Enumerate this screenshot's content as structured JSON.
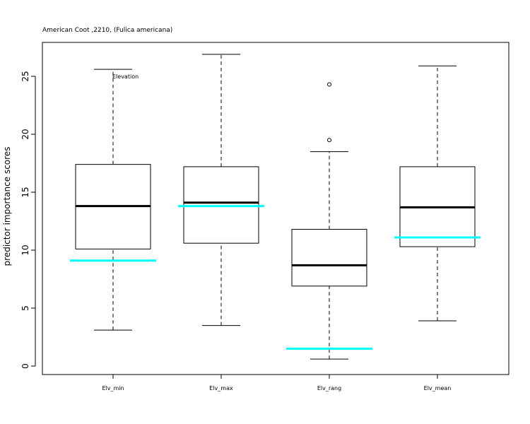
{
  "chart_data": {
    "type": "boxplot",
    "title": "American Coot ,2210, (Fulica americana)",
    "ylabel": "predictor importance scores",
    "xlabel": "",
    "ylim": [
      -0.6,
      28.1
    ],
    "yticks": [
      0,
      5,
      10,
      15,
      20,
      25
    ],
    "categories": [
      "Elv_min",
      "Elv_max",
      "Elv_rang",
      "Elv_mean"
    ],
    "boxes": [
      {
        "whisker_low": 3.1,
        "q1": 10.1,
        "median": 13.8,
        "q3": 17.4,
        "whisker_high": 25.6,
        "outliers": [],
        "reference": 9.1
      },
      {
        "whisker_low": 3.5,
        "q1": 10.6,
        "median": 14.1,
        "q3": 17.2,
        "whisker_high": 26.9,
        "outliers": [],
        "reference": 13.8
      },
      {
        "whisker_low": 0.6,
        "q1": 6.9,
        "median": 8.7,
        "q3": 11.8,
        "whisker_high": 18.5,
        "outliers": [
          19.5,
          24.3
        ],
        "reference": 1.5
      },
      {
        "whisker_low": 3.9,
        "q1": 10.3,
        "median": 13.7,
        "q3": 17.2,
        "whisker_high": 25.9,
        "outliers": [],
        "reference": 11.1
      }
    ],
    "annotations": [
      {
        "text": "Elevation",
        "x_category": 0,
        "y": 25.0,
        "color": "#00cc00"
      }
    ],
    "reference_color": "#00ffff",
    "grid": false
  }
}
